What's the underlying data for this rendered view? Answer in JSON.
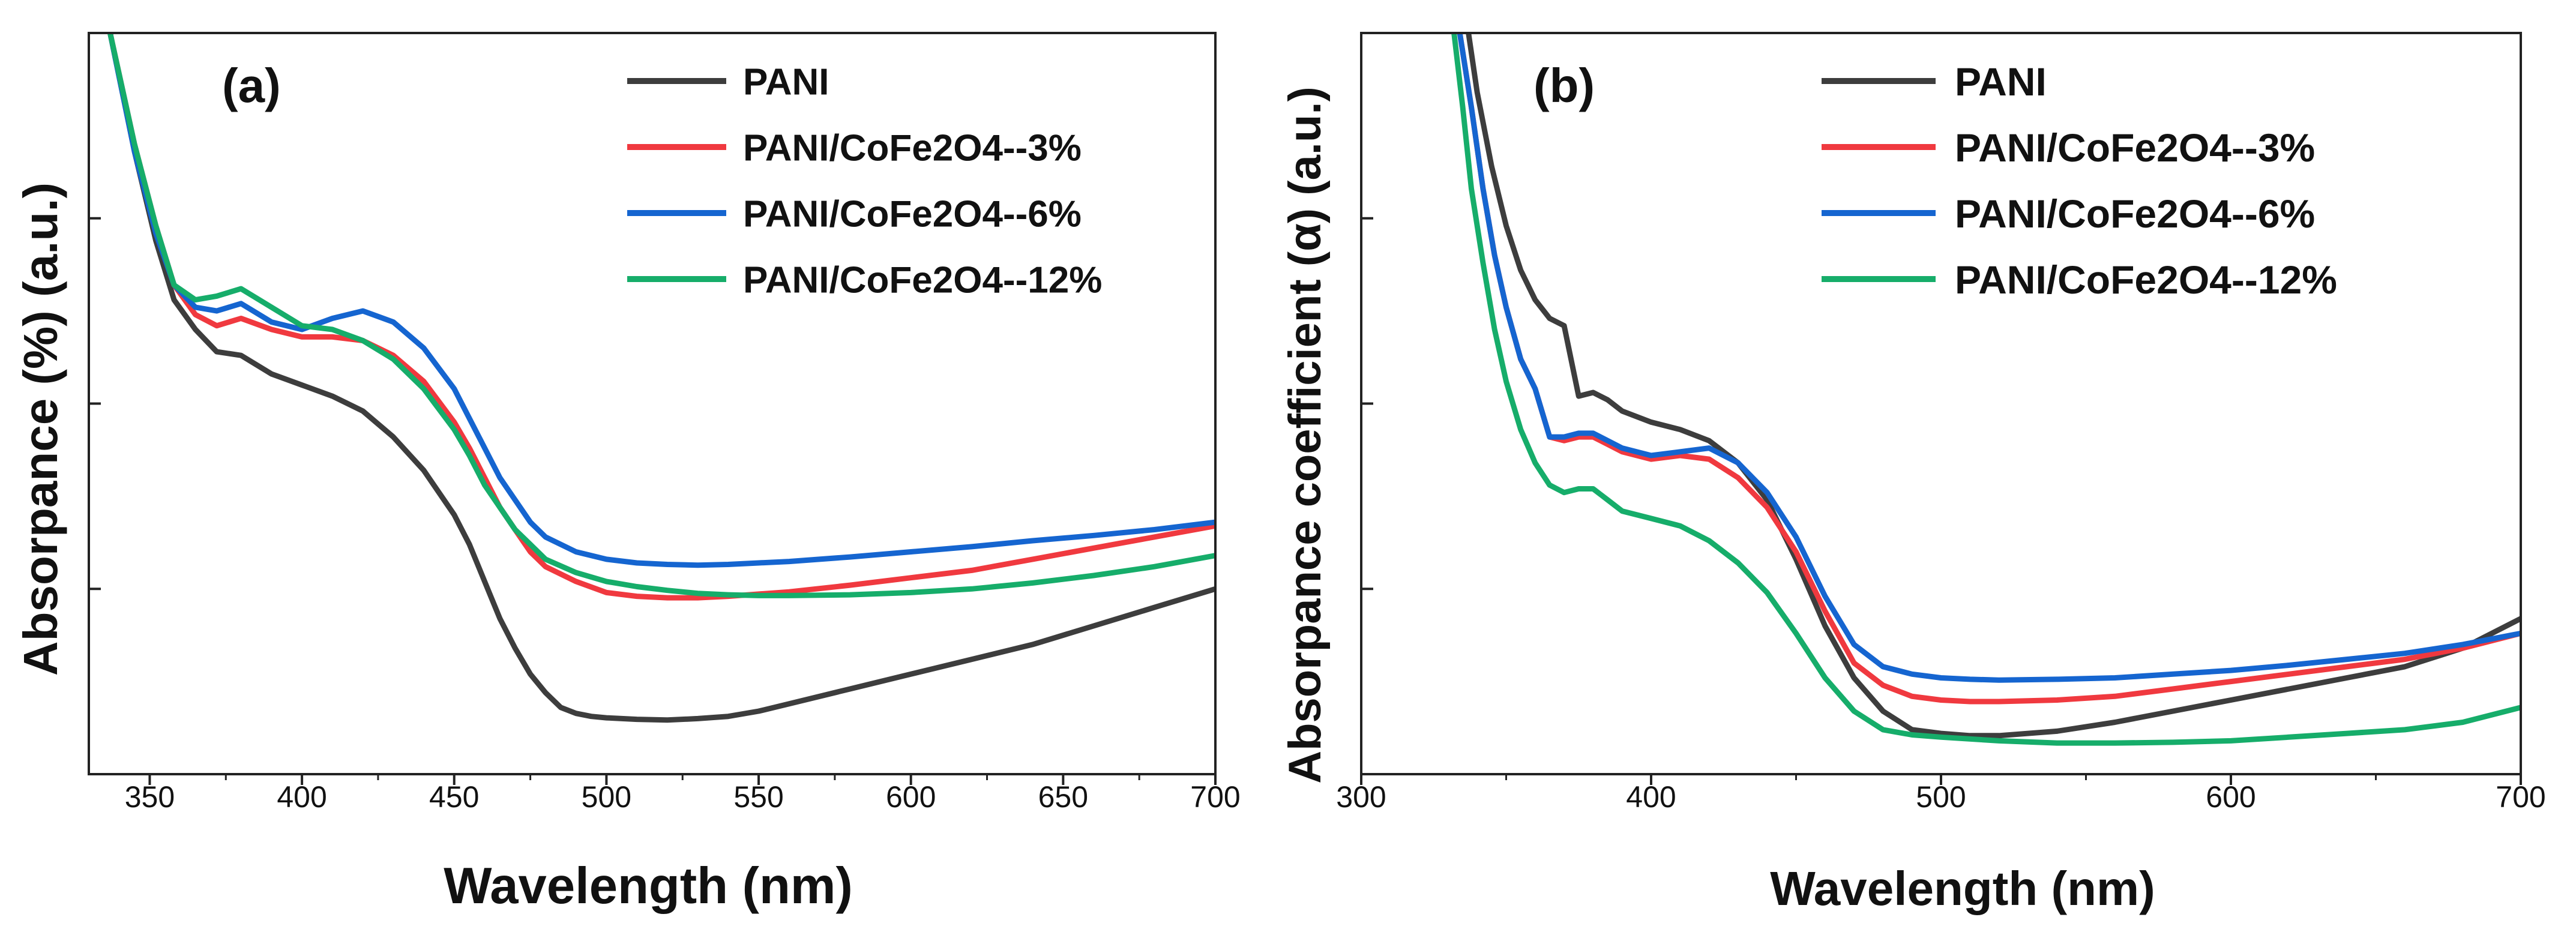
{
  "figure": {
    "colors": {
      "PANI": "#3d3d3d",
      "3%": "#f0393f",
      "6%": "#1565d0",
      "12%": "#16ad6a"
    }
  },
  "chart_data": [
    {
      "type": "line",
      "panel_label": "(a)",
      "xlabel": "Wavelength (nm)",
      "ylabel": "Absorpance (%) (a.u.)",
      "xlim": [
        330,
        700
      ],
      "ylim": [
        0,
        1
      ],
      "xticks": [
        350,
        400,
        450,
        500,
        550,
        600,
        650,
        700
      ],
      "yticks_unlabeled": [
        0.25,
        0.5,
        0.75
      ],
      "legend_position": "top-right",
      "series": [
        {
          "name": "PANI",
          "color": "#3d3d3d",
          "x": [
            337,
            345,
            352,
            358,
            365,
            372,
            380,
            390,
            400,
            410,
            420,
            430,
            440,
            450,
            455,
            460,
            465,
            470,
            475,
            480,
            485,
            490,
            495,
            500,
            510,
            520,
            530,
            540,
            550,
            560,
            580,
            600,
            620,
            640,
            660,
            680,
            700
          ],
          "y": [
            1.0,
            0.84,
            0.72,
            0.64,
            0.6,
            0.57,
            0.565,
            0.54,
            0.525,
            0.51,
            0.49,
            0.455,
            0.41,
            0.35,
            0.31,
            0.26,
            0.21,
            0.17,
            0.135,
            0.11,
            0.09,
            0.082,
            0.078,
            0.076,
            0.074,
            0.073,
            0.075,
            0.078,
            0.085,
            0.095,
            0.115,
            0.135,
            0.155,
            0.175,
            0.2,
            0.225,
            0.25
          ]
        },
        {
          "name": "PANI/CoFe2O4--3%",
          "color": "#f0393f",
          "x": [
            337,
            345,
            352,
            358,
            365,
            372,
            380,
            390,
            400,
            410,
            420,
            430,
            440,
            450,
            455,
            460,
            465,
            470,
            475,
            480,
            490,
            500,
            510,
            520,
            530,
            540,
            550,
            560,
            580,
            600,
            620,
            640,
            660,
            680,
            700
          ],
          "y": [
            1.0,
            0.85,
            0.74,
            0.66,
            0.62,
            0.605,
            0.615,
            0.6,
            0.59,
            0.59,
            0.585,
            0.565,
            0.53,
            0.475,
            0.44,
            0.4,
            0.36,
            0.33,
            0.3,
            0.28,
            0.26,
            0.245,
            0.24,
            0.238,
            0.238,
            0.24,
            0.243,
            0.246,
            0.255,
            0.265,
            0.275,
            0.29,
            0.305,
            0.32,
            0.335
          ]
        },
        {
          "name": "PANI/CoFe2O4--6%",
          "color": "#1565d0",
          "x": [
            337,
            345,
            352,
            358,
            365,
            372,
            380,
            390,
            400,
            410,
            420,
            430,
            440,
            450,
            455,
            460,
            465,
            470,
            475,
            480,
            490,
            500,
            510,
            520,
            530,
            540,
            550,
            560,
            580,
            600,
            620,
            640,
            660,
            680,
            700
          ],
          "y": [
            1.0,
            0.84,
            0.73,
            0.66,
            0.63,
            0.625,
            0.635,
            0.61,
            0.6,
            0.615,
            0.625,
            0.61,
            0.575,
            0.52,
            0.48,
            0.44,
            0.4,
            0.37,
            0.34,
            0.32,
            0.3,
            0.29,
            0.285,
            0.283,
            0.282,
            0.283,
            0.285,
            0.287,
            0.293,
            0.3,
            0.307,
            0.315,
            0.322,
            0.33,
            0.34
          ]
        },
        {
          "name": "PANI/CoFe2O4--12%",
          "color": "#16ad6a",
          "x": [
            337,
            345,
            352,
            358,
            365,
            372,
            380,
            390,
            400,
            410,
            420,
            430,
            440,
            450,
            455,
            460,
            465,
            470,
            475,
            480,
            490,
            500,
            510,
            520,
            530,
            540,
            550,
            560,
            580,
            600,
            620,
            640,
            660,
            680,
            700
          ],
          "y": [
            1.0,
            0.85,
            0.74,
            0.66,
            0.64,
            0.645,
            0.655,
            0.63,
            0.605,
            0.6,
            0.585,
            0.56,
            0.52,
            0.465,
            0.43,
            0.39,
            0.36,
            0.33,
            0.31,
            0.29,
            0.272,
            0.26,
            0.253,
            0.248,
            0.244,
            0.242,
            0.241,
            0.241,
            0.242,
            0.245,
            0.25,
            0.258,
            0.268,
            0.28,
            0.295
          ]
        }
      ]
    },
    {
      "type": "line",
      "panel_label": "(b)",
      "xlabel": "Wavelength (nm)",
      "ylabel": "Absorpance coefficient (α) (a.u.)",
      "xlim": [
        300,
        700
      ],
      "ylim": [
        0,
        1
      ],
      "xticks": [
        300,
        400,
        500,
        600,
        700
      ],
      "yticks_unlabeled": [
        0.25,
        0.5,
        0.75
      ],
      "legend_position": "top-right",
      "series": [
        {
          "name": "PANI",
          "color": "#3d3d3d",
          "x": [
            337,
            340,
            345,
            350,
            355,
            360,
            365,
            370,
            375,
            380,
            385,
            390,
            400,
            410,
            420,
            430,
            440,
            450,
            460,
            470,
            480,
            490,
            500,
            510,
            520,
            540,
            560,
            580,
            600,
            620,
            640,
            660,
            680,
            700
          ],
          "y": [
            1.0,
            0.92,
            0.82,
            0.74,
            0.68,
            0.64,
            0.615,
            0.605,
            0.51,
            0.515,
            0.505,
            0.49,
            0.475,
            0.465,
            0.45,
            0.42,
            0.37,
            0.29,
            0.2,
            0.13,
            0.085,
            0.06,
            0.055,
            0.052,
            0.052,
            0.058,
            0.07,
            0.085,
            0.1,
            0.115,
            0.13,
            0.145,
            0.17,
            0.21
          ]
        },
        {
          "name": "PANI/CoFe2O4--3%",
          "color": "#f0393f",
          "x": [
            334,
            338,
            342,
            346,
            350,
            355,
            360,
            365,
            370,
            375,
            380,
            385,
            390,
            400,
            410,
            420,
            430,
            440,
            450,
            460,
            470,
            480,
            490,
            500,
            510,
            520,
            540,
            560,
            580,
            600,
            620,
            640,
            660,
            680,
            700
          ],
          "y": [
            1.0,
            0.9,
            0.79,
            0.7,
            0.63,
            0.56,
            0.52,
            0.455,
            0.45,
            0.455,
            0.455,
            0.445,
            0.435,
            0.425,
            0.43,
            0.425,
            0.4,
            0.36,
            0.3,
            0.22,
            0.15,
            0.12,
            0.105,
            0.1,
            0.098,
            0.098,
            0.1,
            0.105,
            0.115,
            0.125,
            0.135,
            0.145,
            0.155,
            0.17,
            0.19
          ]
        },
        {
          "name": "PANI/CoFe2O4--6%",
          "color": "#1565d0",
          "x": [
            334,
            338,
            342,
            346,
            350,
            355,
            360,
            365,
            370,
            375,
            380,
            385,
            390,
            400,
            410,
            420,
            430,
            440,
            450,
            460,
            470,
            480,
            490,
            500,
            510,
            520,
            540,
            560,
            580,
            600,
            620,
            640,
            660,
            680,
            700
          ],
          "y": [
            1.0,
            0.9,
            0.79,
            0.7,
            0.63,
            0.56,
            0.52,
            0.455,
            0.455,
            0.46,
            0.46,
            0.45,
            0.44,
            0.43,
            0.435,
            0.44,
            0.42,
            0.38,
            0.32,
            0.24,
            0.175,
            0.145,
            0.135,
            0.13,
            0.128,
            0.127,
            0.128,
            0.13,
            0.135,
            0.14,
            0.147,
            0.155,
            0.163,
            0.175,
            0.19
          ]
        },
        {
          "name": "PANI/CoFe2O4--12%",
          "color": "#16ad6a",
          "x": [
            332,
            335,
            338,
            342,
            346,
            350,
            355,
            360,
            365,
            370,
            375,
            380,
            385,
            390,
            400,
            410,
            420,
            430,
            440,
            450,
            460,
            470,
            480,
            490,
            500,
            520,
            540,
            560,
            580,
            600,
            620,
            640,
            660,
            680,
            700
          ],
          "y": [
            1.0,
            0.9,
            0.79,
            0.69,
            0.6,
            0.53,
            0.465,
            0.42,
            0.39,
            0.38,
            0.385,
            0.385,
            0.37,
            0.355,
            0.345,
            0.335,
            0.315,
            0.285,
            0.245,
            0.19,
            0.13,
            0.085,
            0.06,
            0.053,
            0.05,
            0.045,
            0.042,
            0.042,
            0.043,
            0.045,
            0.05,
            0.055,
            0.06,
            0.07,
            0.09
          ]
        }
      ]
    }
  ]
}
